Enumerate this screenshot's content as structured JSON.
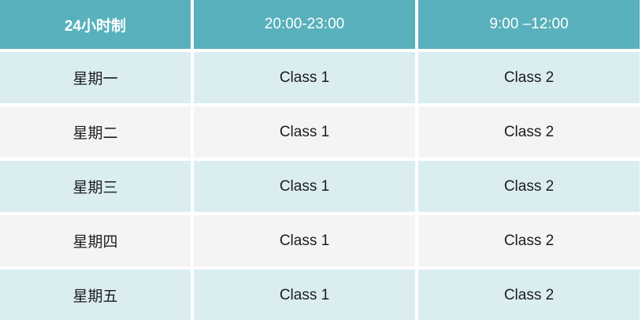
{
  "table": {
    "header": {
      "col1": "24小时制",
      "col2": "20:00-23:00",
      "col3": "9:00 –12:00"
    },
    "rows": [
      {
        "day": "星期一",
        "slot1": "Class 1",
        "slot2": "Class 2"
      },
      {
        "day": "星期二",
        "slot1": "Class 1",
        "slot2": "Class 2"
      },
      {
        "day": "星期三",
        "slot1": "Class 1",
        "slot2": "Class 2"
      },
      {
        "day": "星期四",
        "slot1": "Class 1",
        "slot2": "Class 2"
      },
      {
        "day": "星期五",
        "slot1": "Class 1",
        "slot2": "Class 2"
      }
    ]
  },
  "colors": {
    "header_bg": "#58b1bc",
    "header_text": "#ffffff",
    "row_teal_bg": "#daeef2",
    "row_light_bg": "#f4f4f4",
    "body_text": "#1c1c1c",
    "gutter": "#ffffff"
  }
}
